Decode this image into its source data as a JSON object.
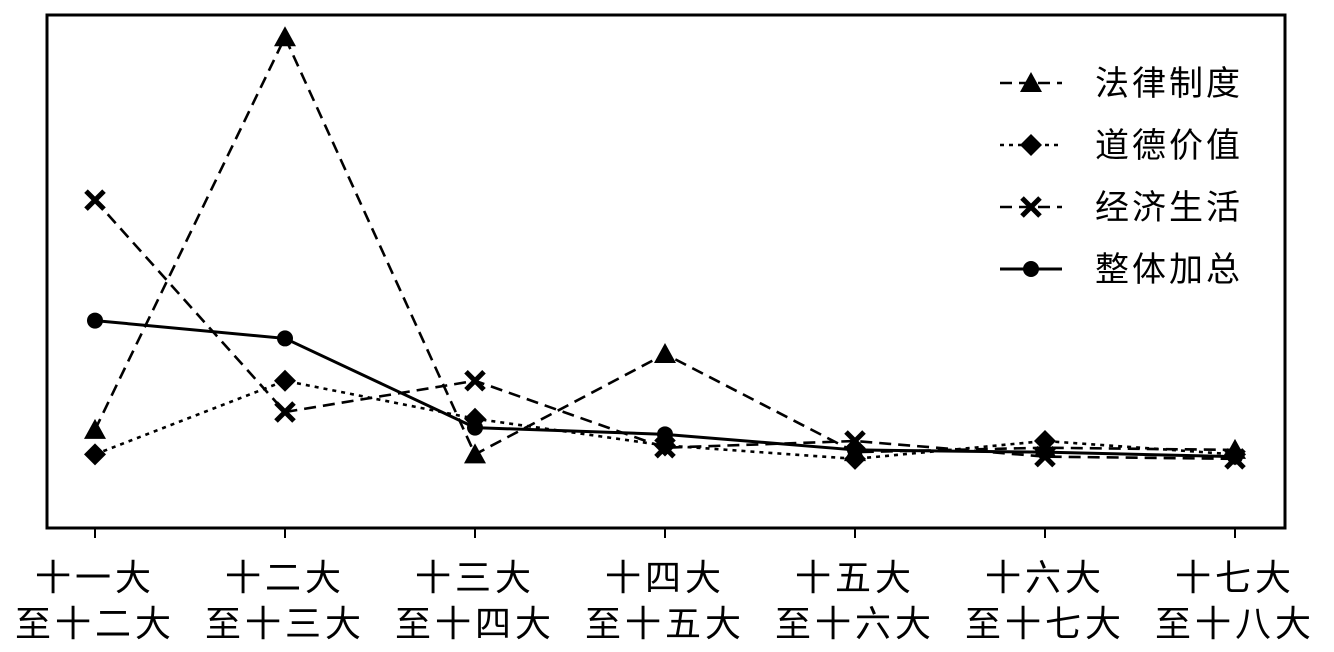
{
  "chart_data": {
    "type": "line",
    "categories": [
      [
        "十一大",
        "至十二大"
      ],
      [
        "十二大",
        "至十三大"
      ],
      [
        "十三大",
        "至十四大"
      ],
      [
        "十四大",
        "至十五大"
      ],
      [
        "十五大",
        "至十六大"
      ],
      [
        "十六大",
        "至十七大"
      ],
      [
        "十七大",
        "至十八大"
      ]
    ],
    "series": [
      {
        "name": "法律制度",
        "marker": "triangle",
        "dash": "dashed",
        "values": [
          0.12,
          1.0,
          0.065,
          0.29,
          0.07,
          0.08,
          0.075
        ]
      },
      {
        "name": "道德价值",
        "marker": "diamond",
        "dash": "dotted",
        "values": [
          0.065,
          0.23,
          0.145,
          0.085,
          0.055,
          0.095,
          0.065
        ]
      },
      {
        "name": "经济生活",
        "marker": "x",
        "dash": "dashed",
        "values": [
          0.635,
          0.16,
          0.23,
          0.08,
          0.095,
          0.06,
          0.055
        ]
      },
      {
        "name": "整体加总",
        "marker": "circle",
        "dash": "solid",
        "values": [
          0.365,
          0.325,
          0.125,
          0.11,
          0.075,
          0.07,
          0.06
        ]
      }
    ],
    "ylim": [
      -0.1,
      1.05
    ],
    "legend_position": "top-right",
    "grid": false,
    "y_ticks_shown": false
  }
}
